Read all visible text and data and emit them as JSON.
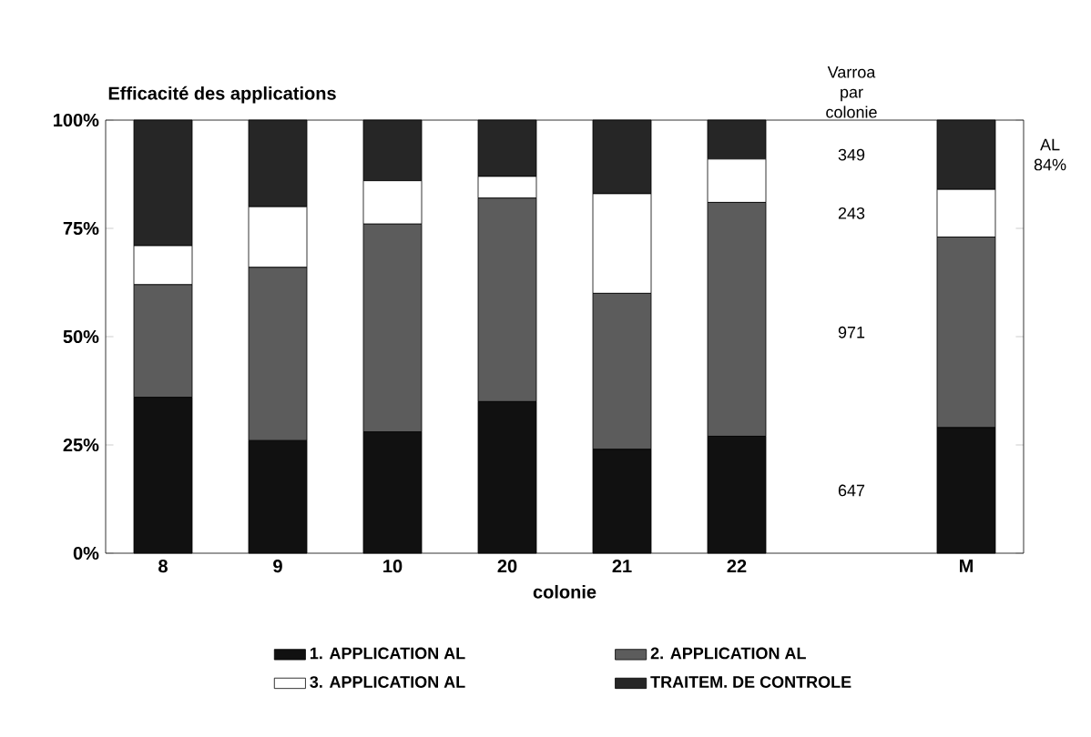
{
  "chart_data": {
    "type": "bar",
    "stacked": true,
    "title": "Efficacité des applications",
    "xlabel": "colonie",
    "categories": [
      "8",
      "9",
      "10",
      "20",
      "21",
      "22",
      null,
      "M"
    ],
    "series": [
      {
        "name": "1. APPLICATION AL",
        "color": "#111111",
        "values": [
          36,
          26,
          28,
          35,
          24,
          27,
          null,
          29
        ]
      },
      {
        "name": "2. APPLICATION AL",
        "color": "#5c5c5c",
        "values": [
          26,
          40,
          48,
          47,
          36,
          54,
          null,
          44
        ]
      },
      {
        "name": "3. APPLICATION AL",
        "color": "#ffffff",
        "values": [
          9,
          14,
          10,
          5,
          23,
          10,
          null,
          11
        ]
      },
      {
        "name": "TRAITEM. DE CONTROLE",
        "color": "#262626",
        "values": [
          29,
          20,
          14,
          13,
          17,
          9,
          null,
          16
        ]
      }
    ],
    "ylim": [
      0,
      100
    ],
    "yticks": [
      {
        "value": 0,
        "label": "0%"
      },
      {
        "value": 25,
        "label": "25%"
      },
      {
        "value": 50,
        "label": "50%"
      },
      {
        "value": 75,
        "label": "75%"
      },
      {
        "value": 100,
        "label": "100%"
      }
    ],
    "annotations": [
      "Varroa par colonie",
      "349",
      "243",
      "971",
      "647",
      "AL 84%"
    ],
    "grid": false,
    "legend": "bottom"
  }
}
